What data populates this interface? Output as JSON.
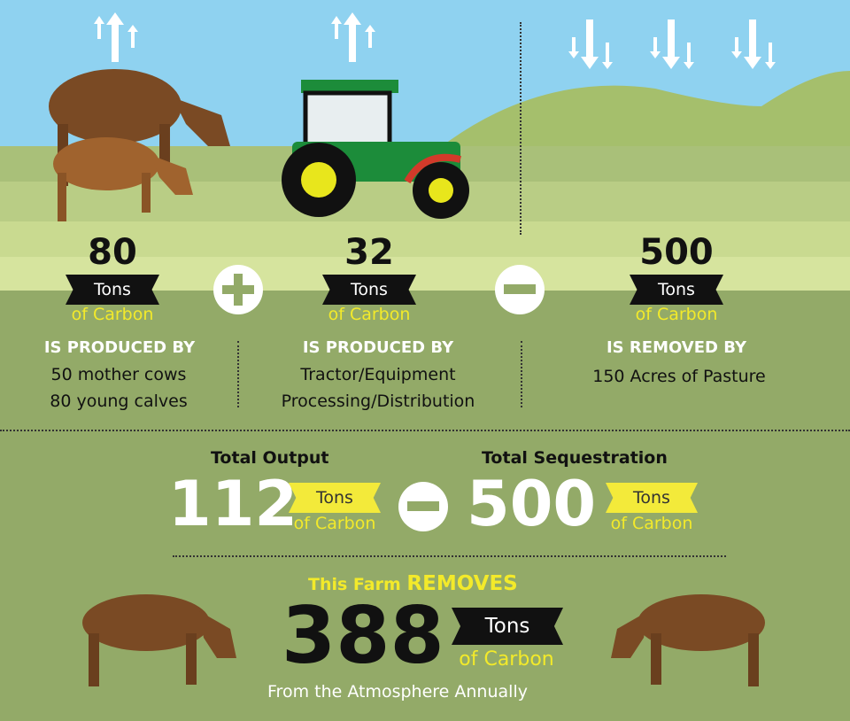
{
  "colors": {
    "sky": "#8fd2f0",
    "grass": "#93aa68",
    "accent_yellow": "#f3ea2a",
    "ribbon": "#111111"
  },
  "sources": [
    {
      "value": "80",
      "unit": "Tons",
      "of": "of Carbon",
      "verb": "IS PRODUCED BY",
      "lines": [
        "50 mother cows",
        "80 young calves"
      ]
    },
    {
      "value": "32",
      "unit": "Tons",
      "of": "of Carbon",
      "verb": "IS PRODUCED BY",
      "lines": [
        "Tractor/Equipment",
        "Processing/Distribution"
      ]
    },
    {
      "value": "500",
      "unit": "Tons",
      "of": "of Carbon",
      "verb": "IS REMOVED BY",
      "lines": [
        "150 Acres of Pasture"
      ]
    }
  ],
  "totals": {
    "output": {
      "label": "Total Output",
      "value": "112",
      "unit": "Tons",
      "of": "of Carbon"
    },
    "sequestration": {
      "label": "Total Sequestration",
      "value": "500",
      "unit": "Tons",
      "of": "of Carbon"
    }
  },
  "result": {
    "prefix": "This Farm",
    "verb": "REMOVES",
    "value": "388",
    "unit": "Tons",
    "of": "of Carbon",
    "footer": "From the Atmosphere Annually"
  },
  "icons": [
    "emission-arrows-up-icon",
    "sequestration-arrows-down-icon",
    "cow-icon",
    "calf-icon",
    "tractor-icon",
    "plus-icon",
    "minus-icon"
  ]
}
